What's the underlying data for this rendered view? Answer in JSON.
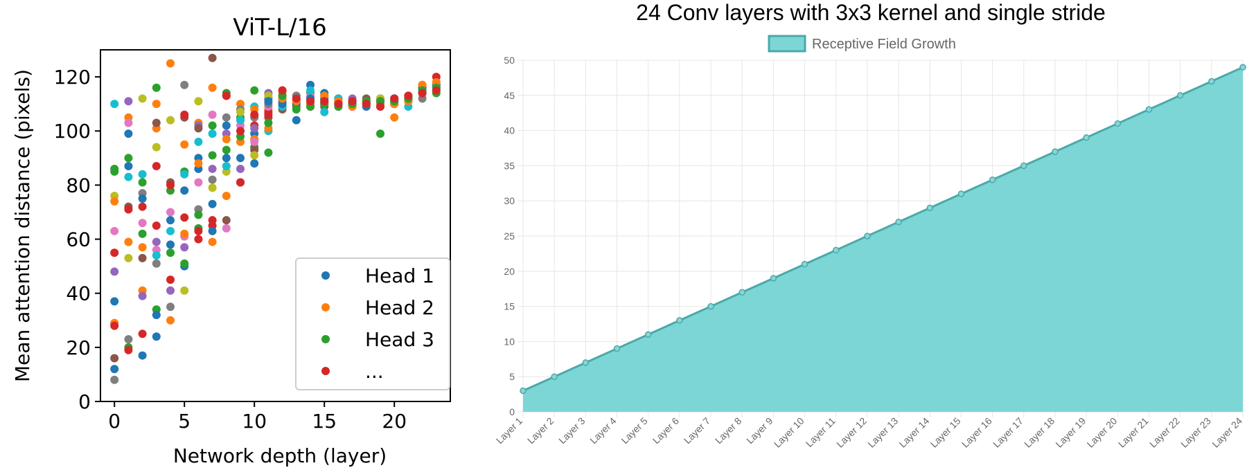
{
  "chart_data": [
    {
      "type": "scatter",
      "title": "ViT-L/16",
      "xlabel": "Network depth (layer)",
      "ylabel": "Mean attention distance (pixels)",
      "xlim": [
        -1,
        24
      ],
      "ylim": [
        0,
        130
      ],
      "xticks": [
        0,
        5,
        10,
        15,
        20
      ],
      "yticks": [
        0,
        20,
        40,
        60,
        80,
        100,
        120
      ],
      "legend_position": "lower-right",
      "legend": [
        {
          "label": "Head 1",
          "color": "#1f77b4"
        },
        {
          "label": "Head 2",
          "color": "#ff7f0e"
        },
        {
          "label": "Head 3",
          "color": "#2ca02c"
        },
        {
          "label": "...",
          "color": "#d62728"
        }
      ],
      "head_colors": [
        "#1f77b4",
        "#ff7f0e",
        "#2ca02c",
        "#d62728",
        "#9467bd",
        "#8c564b",
        "#e377c2",
        "#7f7f7f",
        "#bcbd22",
        "#17becf"
      ],
      "series": [
        {
          "layer": 0,
          "values": [
            37,
            29,
            85,
            55,
            48,
            16,
            63,
            8,
            76,
            110,
            12,
            74,
            86,
            28
          ]
        },
        {
          "layer": 1,
          "values": [
            87,
            105,
            20,
            19,
            111,
            72,
            103,
            23,
            53,
            83,
            99,
            59,
            90,
            71
          ]
        },
        {
          "layer": 2,
          "values": [
            17,
            41,
            62,
            72,
            39,
            53,
            66,
            77,
            112,
            84,
            75,
            57,
            81,
            25
          ]
        },
        {
          "layer": 3,
          "values": [
            24,
            101,
            34,
            87,
            59,
            103,
            56,
            51,
            94,
            54,
            32,
            110,
            116,
            65
          ]
        },
        {
          "layer": 4,
          "values": [
            58,
            30,
            78,
            45,
            41,
            81,
            70,
            35,
            104,
            63,
            67,
            125,
            55,
            80
          ]
        },
        {
          "layer": 5,
          "values": [
            78,
            95,
            85,
            68,
            57,
            105,
            61,
            117,
            41,
            84,
            50,
            62,
            51,
            106
          ]
        },
        {
          "layer": 6,
          "values": [
            90,
            103,
            64,
            60,
            102,
            101,
            81,
            71,
            111,
            96,
            86,
            88,
            69,
            63
          ]
        },
        {
          "layer": 7,
          "values": [
            73,
            59,
            91,
            65,
            86,
            127,
            106,
            82,
            79,
            99,
            63,
            116,
            102,
            67
          ]
        },
        {
          "layer": 8,
          "values": [
            102,
            76,
            114,
            113,
            99,
            67,
            64,
            105,
            85,
            87,
            90,
            97,
            93,
            113
          ]
        },
        {
          "layer": 9,
          "values": [
            81,
            110,
            105,
            81,
            86,
            104,
            102,
            108,
            107,
            104,
            90,
            96,
            98,
            100
          ]
        },
        {
          "layer": 10,
          "values": [
            99,
            97,
            94,
            102,
            101,
            93,
            96,
            105,
            91,
            109,
            88,
            108,
            115,
            106
          ]
        },
        {
          "layer": 11,
          "values": [
            112,
            108,
            92,
            107,
            114,
            105,
            109,
            110,
            113,
            100,
            111,
            101,
            103,
            106
          ]
        },
        {
          "layer": 12,
          "values": [
            113,
            115,
            109,
            111,
            110,
            108,
            112,
            111,
            114,
            109,
            110,
            112,
            113,
            115
          ]
        },
        {
          "layer": 13,
          "values": [
            104,
            112,
            113,
            111,
            110,
            109,
            112,
            113,
            111,
            112,
            110,
            111,
            108,
            112
          ]
        },
        {
          "layer": 14,
          "values": [
            117,
            110,
            114,
            109,
            111,
            112,
            113,
            110,
            111,
            115,
            112,
            110,
            109,
            111
          ]
        },
        {
          "layer": 15,
          "values": [
            114,
            112,
            110,
            111,
            113,
            109,
            112,
            110,
            111,
            107,
            112,
            113,
            110,
            111
          ]
        },
        {
          "layer": 16,
          "values": [
            110,
            111,
            112,
            112,
            109,
            111,
            110,
            110,
            111,
            112,
            110,
            111,
            109,
            110
          ]
        },
        {
          "layer": 17,
          "values": [
            111,
            110,
            110,
            111,
            112,
            110,
            109,
            111,
            110,
            111,
            110,
            109,
            110,
            111
          ]
        },
        {
          "layer": 18,
          "values": [
            110,
            111,
            111,
            110,
            110,
            112,
            109,
            110,
            111,
            111,
            109,
            110,
            111,
            110
          ]
        },
        {
          "layer": 19,
          "values": [
            111,
            110,
            99,
            112,
            110,
            111,
            110,
            109,
            112,
            111,
            110,
            110,
            111,
            109
          ]
        },
        {
          "layer": 20,
          "values": [
            112,
            105,
            110,
            111,
            110,
            111,
            112,
            111,
            110,
            111,
            112,
            110,
            111,
            112
          ]
        },
        {
          "layer": 21,
          "values": [
            113,
            112,
            111,
            112,
            113,
            112,
            111,
            112,
            113,
            109,
            112,
            111,
            112,
            113
          ]
        },
        {
          "layer": 22,
          "values": [
            116,
            115,
            114,
            117,
            115,
            116,
            114,
            112,
            115,
            114,
            116,
            117,
            115,
            114
          ]
        },
        {
          "layer": 23,
          "values": [
            117,
            118,
            114,
            120,
            116,
            115,
            117,
            116,
            115,
            116,
            117,
            118,
            116,
            115
          ]
        }
      ]
    },
    {
      "type": "area",
      "title": "24 Conv layers with 3x3 kernel and single stride",
      "legend_label": "Receptive Field Growth",
      "ylim": [
        0,
        50
      ],
      "yticks": [
        0,
        5,
        10,
        15,
        20,
        25,
        30,
        35,
        40,
        45,
        50
      ],
      "categories": [
        "Layer 1",
        "Layer 2",
        "Layer 3",
        "Layer 4",
        "Layer 5",
        "Layer 6",
        "Layer 7",
        "Layer 8",
        "Layer 9",
        "Layer 10",
        "Layer 11",
        "Layer 12",
        "Layer 13",
        "Layer 14",
        "Layer 15",
        "Layer 16",
        "Layer 17",
        "Layer 18",
        "Layer 19",
        "Layer 20",
        "Layer 21",
        "Layer 22",
        "Layer 23",
        "Layer 24"
      ],
      "values": [
        3,
        5,
        7,
        9,
        11,
        13,
        15,
        17,
        19,
        21,
        23,
        25,
        27,
        29,
        31,
        33,
        35,
        37,
        39,
        41,
        43,
        45,
        47,
        49
      ],
      "fill_color": "#7dd6d6",
      "line_color": "#4aa9a9",
      "point_color": "#8ad5d5"
    }
  ]
}
